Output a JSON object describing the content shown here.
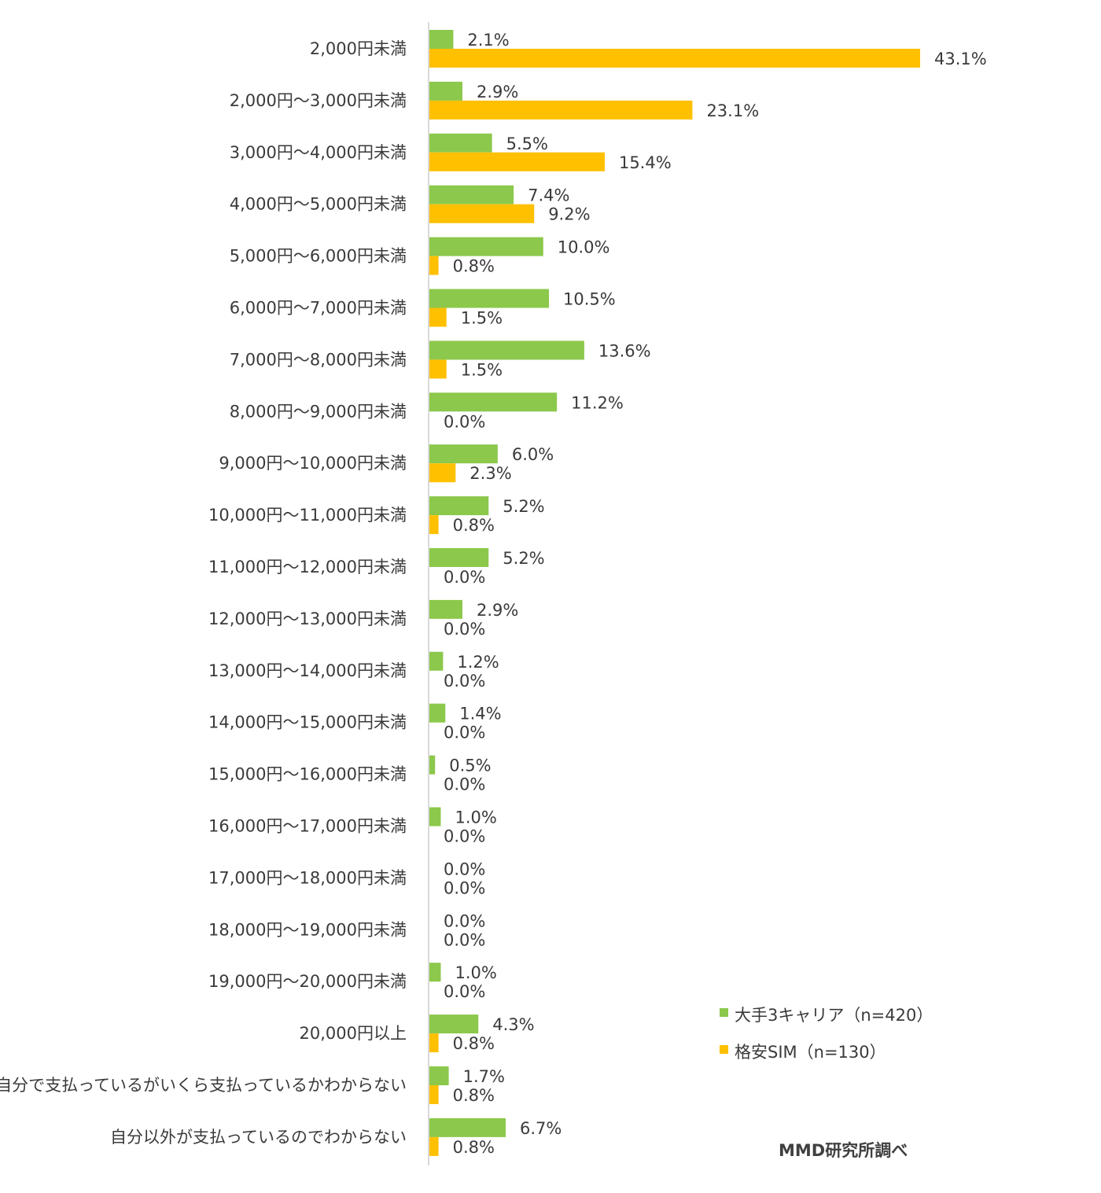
{
  "chart_data": {
    "type": "bar",
    "orientation": "horizontal",
    "categories": [
      "2,000円未満",
      "2,000円～3,000円未満",
      "3,000円～4,000円未満",
      "4,000円～5,000円未満",
      "5,000円～6,000円未満",
      "6,000円～7,000円未満",
      "7,000円～8,000円未満",
      "8,000円～9,000円未満",
      "9,000円～10,000円未満",
      "10,000円～11,000円未満",
      "11,000円～12,000円未満",
      "12,000円～13,000円未満",
      "13,000円～14,000円未満",
      "14,000円～15,000円未満",
      "15,000円～16,000円未満",
      "16,000円～17,000円未満",
      "17,000円～18,000円未満",
      "18,000円～19,000円未満",
      "19,000円～20,000円未満",
      "20,000円以上",
      "自分で支払っているがいくら支払っているかわからない",
      "自分以外が支払っているのでわからない"
    ],
    "series": [
      {
        "name": "大手3キャリア（n=420）",
        "color": "#8cc84b",
        "values": [
          2.1,
          2.9,
          5.5,
          7.4,
          10.0,
          10.5,
          13.6,
          11.2,
          6.0,
          5.2,
          5.2,
          2.9,
          1.2,
          1.4,
          0.5,
          1.0,
          0.0,
          0.0,
          1.0,
          4.3,
          1.7,
          6.7
        ],
        "labels": [
          "2.1%",
          "2.9%",
          "5.5%",
          "7.4%",
          "10.0%",
          "10.5%",
          "13.6%",
          "11.2%",
          "6.0%",
          "5.2%",
          "5.2%",
          "2.9%",
          "1.2%",
          "1.4%",
          "0.5%",
          "1.0%",
          "0.0%",
          "0.0%",
          "1.0%",
          "4.3%",
          "1.7%",
          "6.7%"
        ]
      },
      {
        "name": "格安SIM（n=130）",
        "color": "#ffc000",
        "values": [
          43.1,
          23.1,
          15.4,
          9.2,
          0.8,
          1.5,
          1.5,
          0.0,
          2.3,
          0.8,
          0.0,
          0.0,
          0.0,
          0.0,
          0.0,
          0.0,
          0.0,
          0.0,
          0.0,
          0.8,
          0.8,
          0.8
        ],
        "labels": [
          "43.1%",
          "23.1%",
          "15.4%",
          "9.2%",
          "0.8%",
          "1.5%",
          "1.5%",
          "0.0%",
          "2.3%",
          "0.8%",
          "0.0%",
          "0.0%",
          "0.0%",
          "0.0%",
          "0.0%",
          "0.0%",
          "0.0%",
          "0.0%",
          "0.0%",
          "0.8%",
          "0.8%",
          "0.8%"
        ]
      }
    ],
    "xlim": [
      0,
      50
    ],
    "grid": false,
    "legend_position": "bottom-right",
    "source_note": "MMD研究所調べ",
    "axis_color": "#d9d9d9",
    "text_color": "#3a3a3a"
  }
}
